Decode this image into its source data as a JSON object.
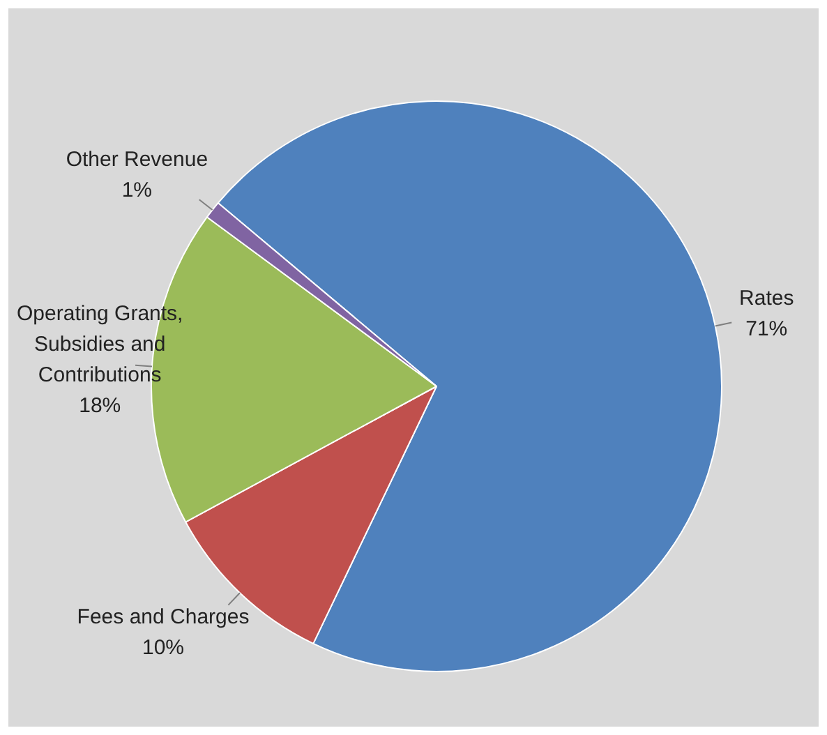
{
  "chart_data": {
    "type": "pie",
    "categories": [
      "Rates",
      "Fees and Charges",
      "Operating Grants, Subsidies and Contributions",
      "Other Revenue"
    ],
    "values": [
      71,
      10,
      18,
      1
    ],
    "colors": [
      "#4f81bd",
      "#c0504d",
      "#9bbb59",
      "#8064a2"
    ],
    "value_labels": [
      "71%",
      "10%",
      "18%",
      "1%"
    ],
    "legend": false
  }
}
